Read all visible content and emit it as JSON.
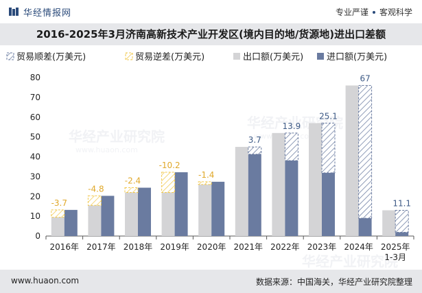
{
  "header": {
    "brand": "华经情报网",
    "tagline_left": "专业严谨",
    "tagline_right": "客观科学"
  },
  "title": "2016-2025年3月济南高新技术产业开发区(境内目的地/货源地)进出口差额",
  "footer": {
    "website": "www.huaon.com",
    "source": "数据来源：中国海关，华经产业研究院整理"
  },
  "watermark": {
    "text": "华经产业研究院",
    "url": "www.huaon.com"
  },
  "colors": {
    "export": "#d4d4d6",
    "import": "#6a7ba0",
    "surplus": "#6a7ba0",
    "deficit": "#f2c84b",
    "label_surplus": "#3e5a86",
    "label_deficit": "#e0a82a"
  },
  "chart_data": {
    "type": "bar",
    "categories": [
      "2016年",
      "2017年",
      "2018年",
      "2019年",
      "2020年",
      "2021年",
      "2022年",
      "2023年",
      "2024年",
      "2025年\n1-3月"
    ],
    "series": [
      {
        "name": "出口额(万美元)",
        "values": [
          9.5,
          15.5,
          22,
          22,
          26,
          45,
          52,
          57,
          76,
          13
        ]
      },
      {
        "name": "进口额(万美元)",
        "values": [
          13.2,
          20.3,
          24.4,
          32.2,
          27.4,
          41.3,
          38.1,
          31.9,
          9,
          1.9
        ]
      }
    ],
    "balance": {
      "values": [
        -3.7,
        -4.8,
        -2.4,
        -10.2,
        -1.4,
        3.7,
        13.9,
        25.1,
        67,
        11.1
      ],
      "labels": [
        "-3.7",
        "-4.8",
        "-2.4",
        "-10.2",
        "-1.4",
        "3.7",
        "13.9",
        "25.1",
        "67",
        "11.1"
      ]
    },
    "legend": [
      "贸易顺差(万美元)",
      "贸易逆差(万美元)",
      "出口额(万美元)",
      "进口额(万美元)"
    ],
    "legend_position": "top-left",
    "ylim": [
      0,
      80
    ],
    "yticks": [
      "0",
      "10",
      "20",
      "30",
      "40",
      "50",
      "60",
      "70",
      "80"
    ],
    "grid": false
  }
}
